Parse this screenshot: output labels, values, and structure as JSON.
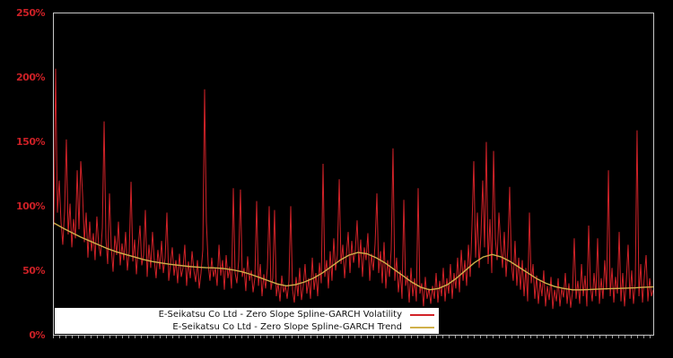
{
  "chart_data": {
    "type": "line",
    "title": "",
    "background_color": "#000000",
    "border_color": "#c8c8c8",
    "legend_position": "bottom-left-inside",
    "grid": false,
    "ylim": [
      0,
      250
    ],
    "y_axis": {
      "unit": "%",
      "tick_label_color": "#cc2026",
      "ticks_desc": [
        "250%",
        "200%",
        "150%",
        "100%",
        "50%",
        "0%"
      ]
    },
    "x_axis": {
      "labels": [],
      "minor_ticks": true
    },
    "series": [
      {
        "name": "E-Seikatsu Co Ltd - Zero Slope Spline-GARCH Volatility",
        "color": "#d12228",
        "width": 1,
        "values": [
          85,
          207,
          95,
          120,
          88,
          70,
          96,
          152,
          78,
          102,
          68,
          90,
          75,
          128,
          82,
          135,
          110,
          72,
          95,
          60,
          88,
          65,
          79,
          58,
          92,
          70,
          61,
          83,
          166,
          75,
          55,
          110,
          68,
          49,
          77,
          62,
          88,
          54,
          71,
          58,
          80,
          50,
          65,
          119,
          57,
          74,
          47,
          68,
          85,
          54,
          62,
          97,
          45,
          70,
          52,
          80,
          58,
          44,
          66,
          51,
          73,
          48,
          60,
          95,
          42,
          55,
          68,
          46,
          58,
          40,
          63,
          45,
          52,
          70,
          38,
          57,
          44,
          65,
          50,
          41,
          58,
          36,
          48,
          66,
          191,
          88,
          55,
          42,
          60,
          45,
          52,
          38,
          70,
          46,
          58,
          35,
          62,
          44,
          53,
          36,
          114,
          48,
          40,
          58,
          113,
          45,
          52,
          34,
          61,
          42,
          50,
          33,
          44,
          104,
          38,
          55,
          30,
          47,
          36,
          52,
          100,
          35,
          44,
          97,
          30,
          40,
          26,
          46,
          33,
          38,
          28,
          42,
          100,
          35,
          25,
          45,
          30,
          52,
          27,
          38,
          55,
          32,
          44,
          28,
          60,
          35,
          48,
          30,
          56,
          40,
          133,
          45,
          58,
          36,
          65,
          42,
          75,
          50,
          62,
          121,
          55,
          70,
          44,
          62,
          80,
          48,
          73,
          56,
          66,
          89,
          52,
          74,
          45,
          68,
          58,
          79,
          42,
          63,
          50,
          71,
          110,
          48,
          65,
          40,
          72,
          36,
          58,
          45,
          66,
          145,
          42,
          60,
          33,
          50,
          28,
          105,
          38,
          46,
          25,
          52,
          30,
          44,
          26,
          114,
          32,
          40,
          22,
          45,
          28,
          36,
          24,
          38,
          28,
          48,
          25,
          42,
          30,
          52,
          26,
          44,
          32,
          55,
          28,
          48,
          36,
          60,
          33,
          66,
          42,
          58,
          38,
          70,
          45,
          85,
          135,
          60,
          95,
          52,
          78,
          120,
          68,
          150,
          55,
          90,
          48,
          143,
          75,
          58,
          95,
          70,
          52,
          80,
          45,
          68,
          115,
          55,
          42,
          73,
          38,
          60,
          35,
          58,
          30,
          52,
          26,
          95,
          40,
          55,
          28,
          46,
          24,
          42,
          30,
          50,
          22,
          38,
          27,
          45,
          20,
          35,
          26,
          44,
          22,
          36,
          29,
          48,
          24,
          40,
          21,
          33,
          75,
          28,
          42,
          24,
          55,
          30,
          46,
          22,
          85,
          38,
          26,
          48,
          30,
          75,
          24,
          44,
          28,
          58,
          35,
          128,
          30,
          52,
          25,
          45,
          32,
          80,
          26,
          48,
          22,
          42,
          70,
          28,
          50,
          24,
          40,
          159,
          30,
          55,
          25,
          45,
          62,
          26,
          44,
          30,
          35
        ]
      },
      {
        "name": "E-Seikatsu Co Ltd - Zero Slope Spline-GARCH Trend",
        "color": "#d0b04a",
        "width": 1.4,
        "values": [
          87,
          83,
          79.5,
          76,
          73,
          70,
          67,
          64.5,
          62.5,
          60.5,
          58.5,
          57,
          55.8,
          54.8,
          54,
          53.2,
          52.6,
          52.2,
          52,
          51.5,
          50.5,
          49,
          47,
          44.5,
          42,
          39.5,
          38,
          39,
          41,
          44,
          48,
          53,
          58,
          62,
          64,
          63,
          60,
          56,
          51,
          46,
          41,
          37,
          35,
          36,
          39,
          44,
          50,
          56,
          60.5,
          62.5,
          60.5,
          57,
          52.5,
          48,
          43.5,
          40,
          37.5,
          36,
          35,
          35,
          35.2,
          35.5,
          35.8,
          36,
          36.2,
          36.5,
          37,
          37.2
        ]
      }
    ]
  },
  "legend": {
    "items": [
      {
        "label": "E-Seikatsu Co Ltd - Zero Slope Spline-GARCH Volatility"
      },
      {
        "label": "E-Seikatsu Co Ltd - Zero Slope Spline-GARCH Trend"
      }
    ]
  }
}
